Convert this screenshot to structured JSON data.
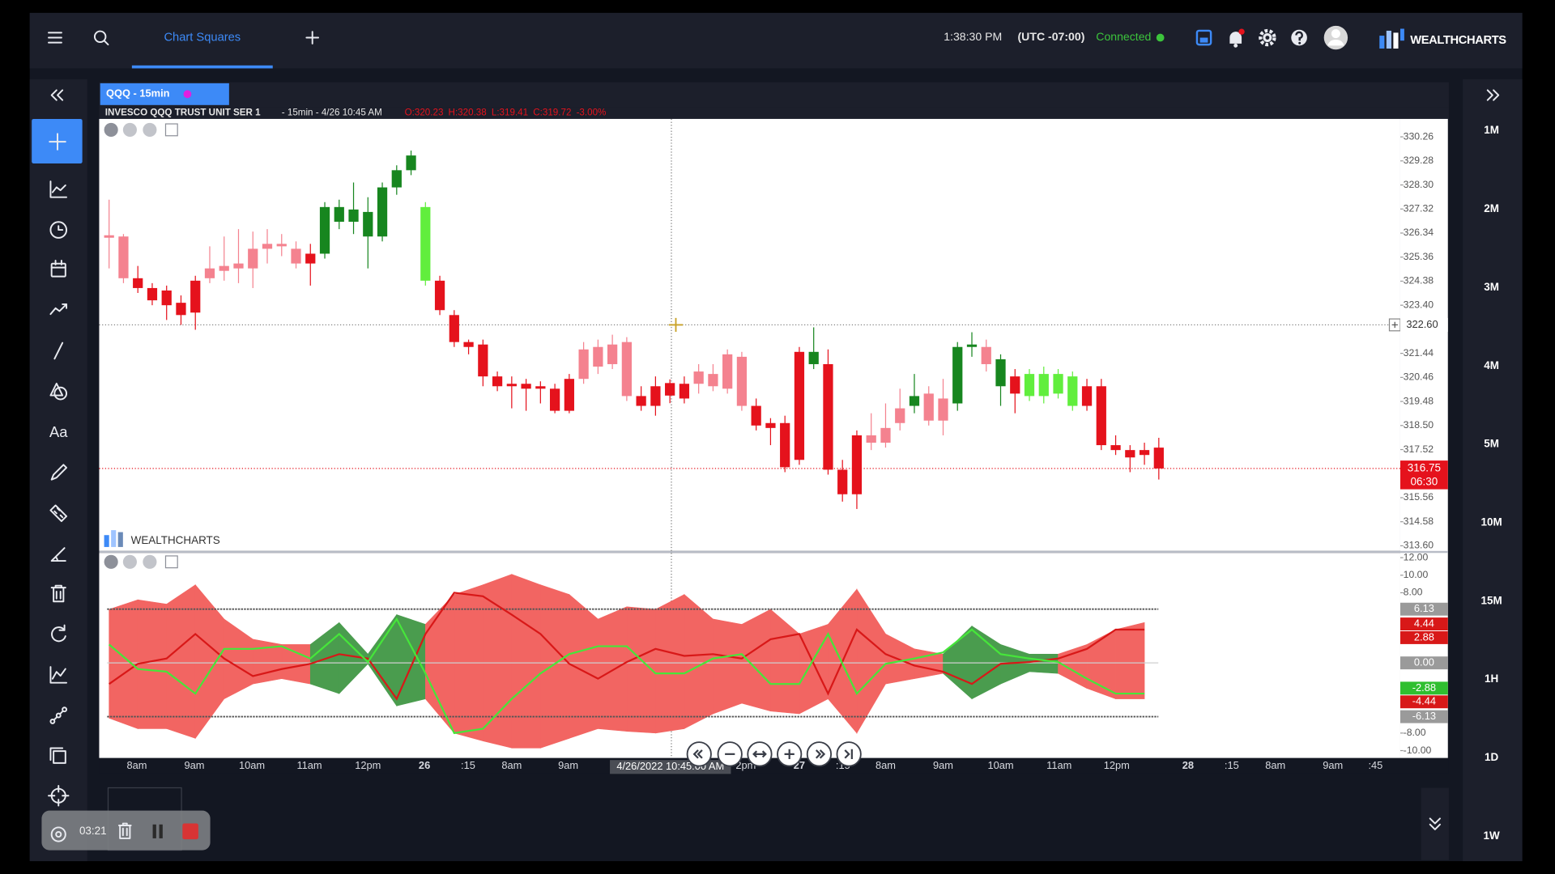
{
  "header": {
    "tab": "Chart Squares",
    "time": "1:38:30 PM",
    "timezone": "(UTC -07:00)",
    "status": "Connected",
    "brand": "WEALTHCHARTS"
  },
  "toolbar": {
    "text_tool": "Aa"
  },
  "timeframes": [
    "1M",
    "2M",
    "3M",
    "4M",
    "5M",
    "10M",
    "15M",
    "1H",
    "1D",
    "1W"
  ],
  "recorder": {
    "elapsed": "03:21"
  },
  "chart": {
    "type": "candlestick",
    "tab": "QQQ - 15min",
    "symbol": "INVESCO QQQ TRUST UNIT SER 1",
    "info": "- 15min - 4/26 10:45 AM",
    "ohlc": [
      "O:320.23",
      "H:320.38",
      "L:319.41",
      "C:319.72",
      "-3.00%"
    ],
    "watermark": "WEALTHCHARTS",
    "ylim": [
      313.39,
      330.99
    ],
    "yticks": [
      330.26,
      329.28,
      {
        "value": 328.3,
        "label": "328.30"
      },
      327.32,
      326.34,
      325.36,
      324.38,
      {
        "value": 323.4,
        "label": "323.40"
      },
      321.44,
      320.46,
      319.48,
      {
        "value": 318.5,
        "label": "318.50"
      },
      317.52,
      315.56,
      314.58,
      {
        "value": 313.6,
        "label": "313.60"
      }
    ],
    "crosshair": {
      "value": 322.6,
      "label": "322.60",
      "time": "4/26/2022 10:45:00 AM"
    },
    "last_price": {
      "value": 316.75,
      "label": "316.75",
      "countdown": "06:30",
      "color": "#e5121c"
    },
    "xlabels": [
      "8am",
      "9am",
      "10am",
      "11am",
      "12pm",
      "26",
      ":15",
      "8am",
      "9am",
      "2pm",
      "27",
      ":15",
      "8am",
      "9am",
      "10am",
      "11am",
      "12pm",
      "28",
      ":15",
      "8am",
      "9am",
      ":45"
    ],
    "candles": [
      {
        "o": 326.25,
        "h": 327.7,
        "l": 324.9,
        "c": 326.15,
        "color": "#f4828f"
      },
      {
        "o": 326.2,
        "h": 326.3,
        "l": 324.3,
        "c": 324.5,
        "color": "#f4828f"
      },
      {
        "o": 324.5,
        "h": 325.0,
        "l": 323.9,
        "c": 324.1,
        "color": "#e5121c"
      },
      {
        "o": 324.1,
        "h": 324.3,
        "l": 323.4,
        "c": 323.6,
        "color": "#e5121c"
      },
      {
        "o": 324.0,
        "h": 324.2,
        "l": 322.8,
        "c": 323.4,
        "color": "#e5121c"
      },
      {
        "o": 323.5,
        "h": 323.8,
        "l": 322.6,
        "c": 323.0,
        "color": "#e5121c"
      },
      {
        "o": 324.4,
        "h": 324.6,
        "l": 322.4,
        "c": 323.1,
        "color": "#e5121c"
      },
      {
        "o": 324.9,
        "h": 325.8,
        "l": 324.3,
        "c": 324.5,
        "color": "#f4828f"
      },
      {
        "o": 325.0,
        "h": 326.2,
        "l": 324.4,
        "c": 324.8,
        "color": "#f4828f"
      },
      {
        "o": 325.1,
        "h": 326.5,
        "l": 324.3,
        "c": 324.9,
        "color": "#f4828f"
      },
      {
        "o": 325.7,
        "h": 326.4,
        "l": 324.1,
        "c": 324.9,
        "color": "#f4828f"
      },
      {
        "o": 325.9,
        "h": 326.5,
        "l": 325.1,
        "c": 325.7,
        "color": "#f4828f"
      },
      {
        "o": 325.9,
        "h": 326.3,
        "l": 325.4,
        "c": 325.8,
        "color": "#f4828f"
      },
      {
        "o": 325.7,
        "h": 326.0,
        "l": 324.9,
        "c": 325.1,
        "color": "#f4828f"
      },
      {
        "o": 325.5,
        "h": 325.9,
        "l": 324.2,
        "c": 325.1,
        "color": "#e5121c"
      },
      {
        "o": 325.5,
        "h": 327.6,
        "l": 325.3,
        "c": 327.4,
        "color": "#17861f"
      },
      {
        "o": 326.8,
        "h": 327.7,
        "l": 326.5,
        "c": 327.4,
        "color": "#17861f"
      },
      {
        "o": 326.8,
        "h": 328.4,
        "l": 326.3,
        "c": 327.3,
        "color": "#17861f"
      },
      {
        "o": 326.2,
        "h": 327.8,
        "l": 324.9,
        "c": 327.2,
        "color": "#17861f"
      },
      {
        "o": 326.2,
        "h": 328.4,
        "l": 326.0,
        "c": 328.2,
        "color": "#17861f"
      },
      {
        "o": 328.2,
        "h": 329.1,
        "l": 327.9,
        "c": 328.9,
        "color": "#17861f"
      },
      {
        "o": 328.9,
        "h": 329.7,
        "l": 328.7,
        "c": 329.5,
        "color": "#17861f"
      },
      {
        "o": 324.4,
        "h": 327.6,
        "l": 324.2,
        "c": 327.4,
        "color": "#61ee3d"
      },
      {
        "o": 324.4,
        "h": 324.6,
        "l": 323.0,
        "c": 323.2,
        "color": "#e5121c"
      },
      {
        "o": 323.0,
        "h": 323.2,
        "l": 321.7,
        "c": 321.9,
        "color": "#e5121c"
      },
      {
        "o": 321.9,
        "h": 322.0,
        "l": 321.4,
        "c": 321.7,
        "color": "#e5121c"
      },
      {
        "o": 321.8,
        "h": 322.0,
        "l": 320.1,
        "c": 320.5,
        "color": "#e5121c"
      },
      {
        "o": 320.5,
        "h": 320.7,
        "l": 319.9,
        "c": 320.1,
        "color": "#e5121c"
      },
      {
        "o": 320.2,
        "h": 320.5,
        "l": 319.2,
        "c": 320.1,
        "color": "#e5121c"
      },
      {
        "o": 320.2,
        "h": 320.4,
        "l": 319.1,
        "c": 320.0,
        "color": "#e5121c"
      },
      {
        "o": 320.1,
        "h": 320.3,
        "l": 319.4,
        "c": 320.0,
        "color": "#e5121c"
      },
      {
        "o": 320.0,
        "h": 320.2,
        "l": 319.0,
        "c": 319.1,
        "color": "#e5121c"
      },
      {
        "o": 320.4,
        "h": 320.6,
        "l": 319.0,
        "c": 319.1,
        "color": "#e5121c"
      },
      {
        "o": 321.6,
        "h": 321.9,
        "l": 320.2,
        "c": 320.4,
        "color": "#f4828f"
      },
      {
        "o": 321.7,
        "h": 322.0,
        "l": 320.6,
        "c": 320.9,
        "color": "#f4828f"
      },
      {
        "o": 321.8,
        "h": 322.2,
        "l": 320.8,
        "c": 321.0,
        "color": "#f4828f"
      },
      {
        "o": 321.9,
        "h": 322.1,
        "l": 319.5,
        "c": 319.7,
        "color": "#f4828f"
      },
      {
        "o": 319.7,
        "h": 320.1,
        "l": 319.1,
        "c": 319.3,
        "color": "#e5121c"
      },
      {
        "o": 320.1,
        "h": 320.5,
        "l": 318.9,
        "c": 319.3,
        "color": "#e5121c"
      },
      {
        "o": 320.23,
        "h": 320.38,
        "l": 319.41,
        "c": 319.72,
        "color": "#e5121c"
      },
      {
        "o": 320.2,
        "h": 320.5,
        "l": 319.4,
        "c": 319.6,
        "color": "#e5121c"
      },
      {
        "o": 320.7,
        "h": 321.0,
        "l": 319.8,
        "c": 320.2,
        "color": "#f4828f"
      },
      {
        "o": 320.6,
        "h": 321.0,
        "l": 319.9,
        "c": 320.1,
        "color": "#f4828f"
      },
      {
        "o": 321.4,
        "h": 321.6,
        "l": 319.8,
        "c": 320.0,
        "color": "#f4828f"
      },
      {
        "o": 321.3,
        "h": 321.5,
        "l": 319.1,
        "c": 319.3,
        "color": "#f4828f"
      },
      {
        "o": 319.3,
        "h": 319.6,
        "l": 318.3,
        "c": 318.5,
        "color": "#e5121c"
      },
      {
        "o": 318.6,
        "h": 318.8,
        "l": 317.7,
        "c": 318.4,
        "color": "#e5121c"
      },
      {
        "o": 318.6,
        "h": 318.9,
        "l": 316.6,
        "c": 316.8,
        "color": "#e5121c"
      },
      {
        "o": 321.5,
        "h": 321.7,
        "l": 316.9,
        "c": 317.1,
        "color": "#e5121c"
      },
      {
        "o": 321.0,
        "h": 322.5,
        "l": 320.8,
        "c": 321.5,
        "color": "#17861f"
      },
      {
        "o": 321.0,
        "h": 321.6,
        "l": 316.5,
        "c": 316.7,
        "color": "#e5121c"
      },
      {
        "o": 316.7,
        "h": 317.1,
        "l": 315.4,
        "c": 315.7,
        "color": "#e5121c"
      },
      {
        "o": 318.1,
        "h": 318.3,
        "l": 315.1,
        "c": 315.7,
        "color": "#e5121c"
      },
      {
        "o": 318.1,
        "h": 319.0,
        "l": 317.5,
        "c": 317.8,
        "color": "#f4828f"
      },
      {
        "o": 318.4,
        "h": 319.4,
        "l": 317.6,
        "c": 317.8,
        "color": "#f4828f"
      },
      {
        "o": 319.2,
        "h": 320.0,
        "l": 318.3,
        "c": 318.6,
        "color": "#f4828f"
      },
      {
        "o": 319.3,
        "h": 320.6,
        "l": 319.0,
        "c": 319.7,
        "color": "#17861f"
      },
      {
        "o": 319.8,
        "h": 320.1,
        "l": 318.5,
        "c": 318.7,
        "color": "#f4828f"
      },
      {
        "o": 319.6,
        "h": 320.4,
        "l": 318.1,
        "c": 318.7,
        "color": "#f4828f"
      },
      {
        "o": 319.4,
        "h": 321.9,
        "l": 319.1,
        "c": 321.7,
        "color": "#17861f"
      },
      {
        "o": 321.7,
        "h": 322.3,
        "l": 321.3,
        "c": 321.8,
        "color": "#17861f"
      },
      {
        "o": 321.7,
        "h": 322.0,
        "l": 320.7,
        "c": 321.0,
        "color": "#f4828f"
      },
      {
        "o": 320.1,
        "h": 321.4,
        "l": 319.3,
        "c": 321.2,
        "color": "#17861f"
      },
      {
        "o": 320.5,
        "h": 320.8,
        "l": 319.0,
        "c": 319.8,
        "color": "#e5121c"
      },
      {
        "o": 319.7,
        "h": 320.8,
        "l": 319.5,
        "c": 320.6,
        "color": "#61ee3d"
      },
      {
        "o": 319.7,
        "h": 320.9,
        "l": 319.4,
        "c": 320.6,
        "color": "#61ee3d"
      },
      {
        "o": 319.8,
        "h": 320.8,
        "l": 319.6,
        "c": 320.6,
        "color": "#61ee3d"
      },
      {
        "o": 319.3,
        "h": 320.7,
        "l": 319.1,
        "c": 320.5,
        "color": "#61ee3d"
      },
      {
        "o": 320.1,
        "h": 320.4,
        "l": 319.1,
        "c": 319.3,
        "color": "#e5121c"
      },
      {
        "o": 320.1,
        "h": 320.4,
        "l": 317.5,
        "c": 317.7,
        "color": "#e5121c"
      },
      {
        "o": 317.7,
        "h": 318.1,
        "l": 317.3,
        "c": 317.5,
        "color": "#e5121c"
      },
      {
        "o": 317.5,
        "h": 317.7,
        "l": 316.6,
        "c": 317.2,
        "color": "#e5121c"
      },
      {
        "o": 317.5,
        "h": 317.8,
        "l": 316.9,
        "c": 317.3,
        "color": "#e5121c"
      },
      {
        "o": 317.6,
        "h": 318.0,
        "l": 316.3,
        "c": 316.75,
        "color": "#e5121c"
      }
    ],
    "oscillator": {
      "type": "band",
      "ylim": [
        -10.85,
        12.54
      ],
      "yticks": [
        {
          "value": 12,
          "label": "12.00"
        },
        {
          "value": 10,
          "label": "10.00"
        },
        {
          "value": 8,
          "label": "8.00"
        },
        {
          "value": -8,
          "label": "-8.00"
        },
        {
          "value": -10,
          "label": "-10.00"
        }
      ],
      "upper": [
        6.1,
        7.2,
        6.7,
        8.9,
        5.0,
        2.7,
        2.1,
        2.1,
        4.6,
        1.0,
        5.5,
        4.4,
        7.8,
        8.9,
        10.1,
        8.9,
        7.8,
        5.0,
        6.4,
        6.1,
        7.8,
        5.0,
        4.4,
        6.1,
        3.3,
        4.4,
        8.4,
        3.3,
        1.6,
        1.0,
        4.2,
        2.1,
        1.0,
        1.0,
        2.1,
        3.8,
        4.6
      ],
      "lower": [
        -6.3,
        -7.5,
        -7.5,
        -8.6,
        -4.1,
        -2.4,
        -1.8,
        -2.4,
        -3.5,
        -0.1,
        -4.9,
        -4.1,
        -8.0,
        -8.9,
        -9.7,
        -9.7,
        -8.6,
        -7.5,
        -7.8,
        -8.0,
        -7.5,
        -5.8,
        -4.6,
        -5.5,
        -5.8,
        -4.1,
        -8.0,
        -2.4,
        -1.8,
        -1.2,
        -4.1,
        -2.4,
        -1.0,
        -1.2,
        -2.9,
        -4.1,
        -4.1
      ],
      "fill_colors": [
        "#f26562",
        "#f26562",
        "#f26562",
        "#f26562",
        "#f26562",
        "#f26562",
        "#f26562",
        "#4a9c4e",
        "#4a9c4e",
        "#4a9c4e",
        "#4a9c4e",
        "#f26562",
        "#f26562",
        "#f26562",
        "#f26562",
        "#f26562",
        "#f26562",
        "#f26562",
        "#f26562",
        "#f26562",
        "#f26562",
        "#f26562",
        "#f26562",
        "#f26562",
        "#f26562",
        "#f26562",
        "#f26562",
        "#f26562",
        "#f26562",
        "#4a9c4e",
        "#4a9c4e",
        "#4a9c4e",
        "#4a9c4e",
        "#f26562",
        "#f26562",
        "#f26562"
      ],
      "lines": [
        {
          "color": "#d81818",
          "values": [
            -2.4,
            -0.1,
            0.5,
            3.3,
            0.5,
            -1.5,
            -0.7,
            -0.1,
            1.0,
            0.5,
            -4.1,
            3.3,
            8.0,
            7.6,
            5.5,
            3.3,
            -0.1,
            -1.8,
            0.1,
            1.6,
            0.8,
            1.0,
            0.5,
            2.7,
            3.3,
            -3.5,
            3.8,
            1.0,
            -0.3,
            -1.0,
            -2.4,
            -0.1,
            0.1,
            0.5,
            1.6,
            3.8,
            3.8
          ]
        },
        {
          "color": "#46e63a",
          "values": [
            2.1,
            -0.7,
            -1.0,
            -3.5,
            1.6,
            1.6,
            1.9,
            0.5,
            3.3,
            0.1,
            5.0,
            -1.2,
            -8.0,
            -7.5,
            -4.1,
            -1.2,
            1.0,
            1.9,
            1.9,
            -1.2,
            -1.2,
            0.5,
            1.0,
            -2.4,
            -2.4,
            3.3,
            -3.5,
            -0.1,
            0.5,
            1.2,
            3.8,
            1.0,
            0.5,
            0.1,
            -1.8,
            -3.5,
            -3.5
          ]
        }
      ],
      "levels": [
        6.13,
        -6.13
      ],
      "markers": [
        {
          "value": 6.13,
          "label": "6.13",
          "color": "#9a9a9a"
        },
        {
          "value": 4.44,
          "label": "4.44",
          "color": "#d81818"
        },
        {
          "value": 2.88,
          "label": "2.88",
          "color": "#d81818"
        },
        {
          "value": 0,
          "label": "0.00",
          "color": "#9a9a9a"
        },
        {
          "value": -2.88,
          "label": "-2.88",
          "color": "#2fbf2f"
        },
        {
          "value": -4.44,
          "label": "-4.44",
          "color": "#d81818"
        },
        {
          "value": -6.13,
          "label": "-6.13",
          "color": "#9a9a9a"
        }
      ]
    }
  }
}
